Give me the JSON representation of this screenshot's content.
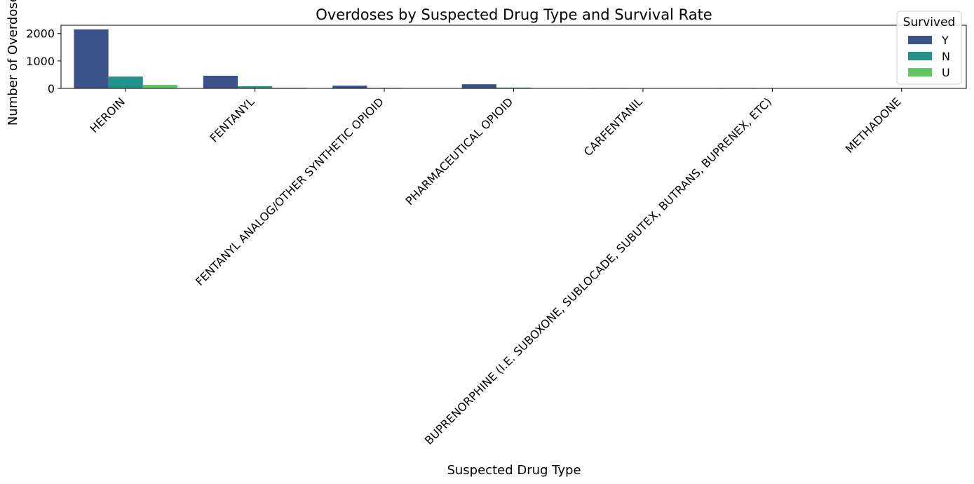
{
  "chart_data": {
    "type": "bar",
    "title": "Overdoses by Suspected Drug Type and Survival Rate",
    "xlabel": "Suspected Drug Type",
    "ylabel": "Number of Overdoses",
    "ylim": [
      0,
      2300
    ],
    "yticks": [
      0,
      1000,
      2000
    ],
    "categories": [
      "HEROIN",
      "FENTANYL",
      "FENTANYL ANALOG/OTHER SYNTHETIC OPIOID",
      "PHARMACEUTICAL OPIOID",
      "CARFENTANIL",
      "BUPRENORPHINE (I.E. SUBOXONE, SUBLOCADE, SUBUTEX, BUTRANS, BUPRENEX, ETC)",
      "METHADONE"
    ],
    "series": [
      {
        "name": "Y",
        "color": "#3b528b",
        "values": [
          2150,
          460,
          100,
          150,
          15,
          15,
          10
        ]
      },
      {
        "name": "N",
        "color": "#21918c",
        "values": [
          430,
          80,
          20,
          30,
          3,
          2,
          2
        ]
      },
      {
        "name": "U",
        "color": "#5ec962",
        "values": [
          130,
          25,
          0,
          0,
          0,
          0,
          0
        ]
      }
    ],
    "legend": {
      "title": "Survived",
      "position": "top-right"
    },
    "grid": false
  }
}
